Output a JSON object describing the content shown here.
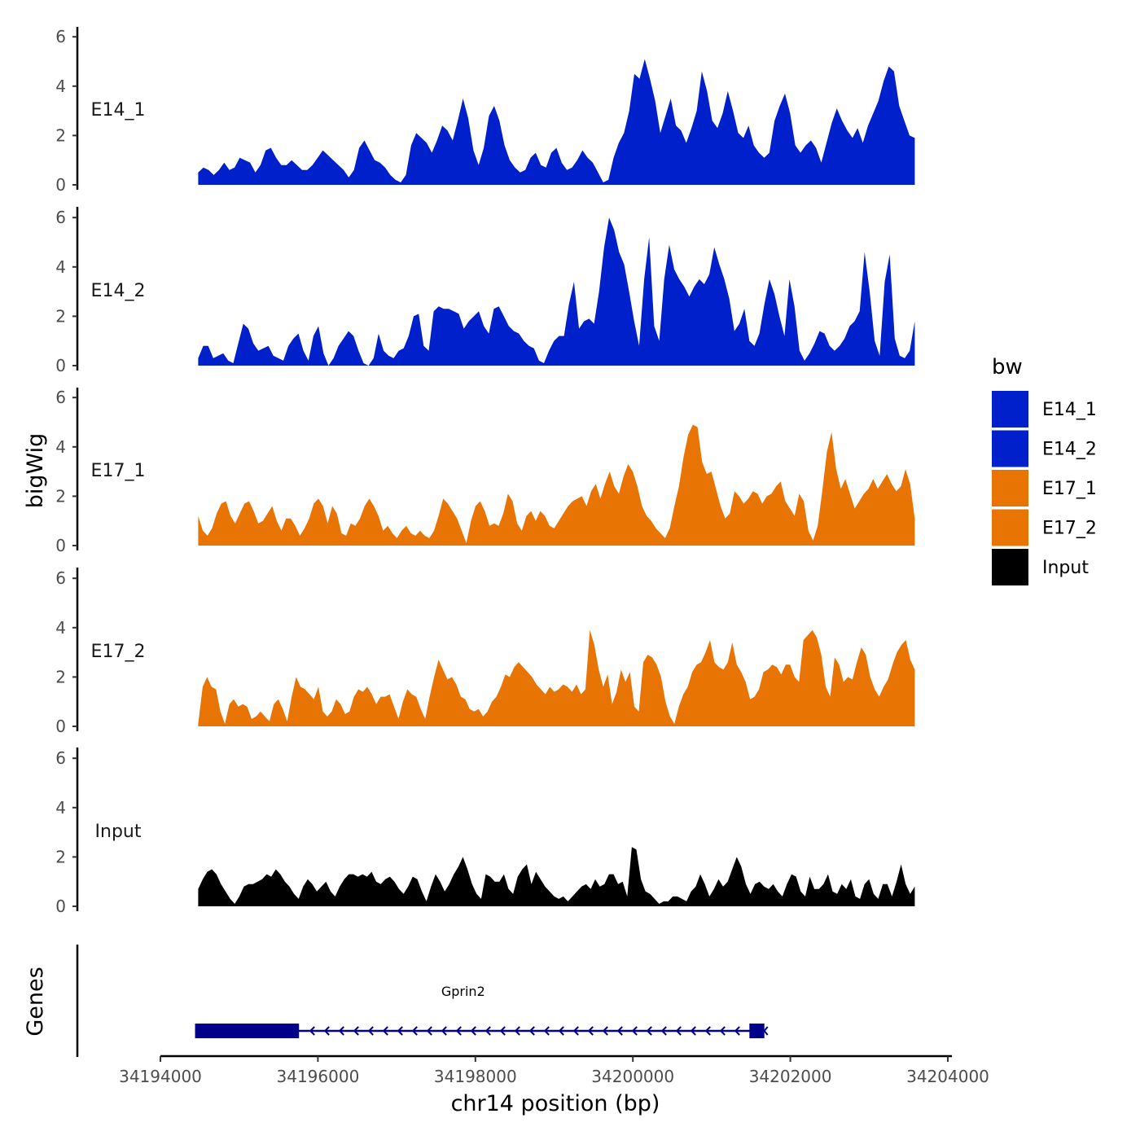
{
  "chart_data": {
    "type": "area",
    "ylabel": "bigWig",
    "xlabel": "chr14 position (bp)",
    "gene_track_label": "Genes",
    "ylim": [
      0,
      6.3
    ],
    "yticks": [
      0,
      2,
      4,
      6
    ],
    "xlim": [
      34194000,
      34204000
    ],
    "xticks": [
      34194000,
      34196000,
      34198000,
      34200000,
      34202000,
      34204000
    ],
    "x_range": [
      34194480,
      34203580
    ],
    "legend": {
      "title": "bw",
      "position": "right",
      "entries": [
        {
          "name": "E14_1",
          "color": "#0020cc"
        },
        {
          "name": "E14_2",
          "color": "#0020cc"
        },
        {
          "name": "E17_1",
          "color": "#e87404"
        },
        {
          "name": "E17_2",
          "color": "#e87404"
        },
        {
          "name": "Input",
          "color": "#000000"
        }
      ]
    },
    "series": [
      {
        "name": "E14_1",
        "color": "#0020cc",
        "values": [
          0.5,
          0.7,
          0.6,
          0.4,
          0.6,
          0.9,
          0.6,
          0.7,
          1.1,
          1.0,
          0.9,
          0.5,
          0.8,
          1.4,
          1.5,
          1.1,
          0.8,
          0.8,
          1.0,
          0.8,
          0.6,
          0.6,
          0.8,
          1.1,
          1.4,
          1.2,
          1.0,
          0.8,
          0.6,
          0.3,
          0.6,
          1.5,
          1.8,
          1.4,
          1.0,
          0.9,
          0.7,
          0.4,
          0.2,
          0.1,
          0.4,
          1.6,
          2.1,
          1.9,
          1.7,
          1.3,
          1.8,
          2.4,
          2.2,
          1.8,
          2.6,
          3.5,
          2.7,
          1.4,
          0.8,
          1.5,
          2.8,
          3.2,
          2.6,
          1.6,
          1.0,
          0.7,
          0.5,
          0.6,
          1.1,
          1.3,
          0.8,
          0.7,
          1.3,
          1.5,
          0.9,
          0.6,
          0.7,
          1.0,
          1.4,
          1.1,
          0.9,
          0.5,
          0.1,
          0.2,
          1.1,
          1.7,
          2.1,
          3.0,
          4.5,
          4.3,
          5.1,
          4.3,
          3.4,
          2.1,
          2.8,
          3.5,
          2.4,
          2.2,
          1.7,
          2.3,
          3.0,
          4.6,
          3.8,
          2.6,
          2.3,
          2.9,
          3.8,
          3.0,
          2.1,
          1.9,
          2.4,
          1.6,
          1.3,
          1.1,
          1.3,
          2.6,
          3.2,
          3.7,
          2.9,
          1.6,
          1.3,
          1.6,
          1.8,
          1.5,
          0.9,
          1.7,
          2.5,
          3.1,
          2.6,
          2.2,
          1.9,
          2.3,
          1.7,
          2.4,
          2.9,
          3.4,
          4.2,
          4.8,
          4.6,
          3.2,
          2.6,
          2.0,
          1.9
        ],
        "label": "E14_1"
      },
      {
        "name": "E14_2",
        "color": "#0020cc",
        "values": [
          0.3,
          0.8,
          0.8,
          0.3,
          0.4,
          0.5,
          0.2,
          0.1,
          0.9,
          1.7,
          1.5,
          0.9,
          0.6,
          0.7,
          0.8,
          0.4,
          0.3,
          0.2,
          0.8,
          1.1,
          1.3,
          0.6,
          0.2,
          1.2,
          1.6,
          0.5,
          0.0,
          0.3,
          0.8,
          1.1,
          1.4,
          1.2,
          0.6,
          0.1,
          0.0,
          0.3,
          1.3,
          0.6,
          0.4,
          0.3,
          0.6,
          0.7,
          1.2,
          2.0,
          2.1,
          0.8,
          0.6,
          2.2,
          2.4,
          2.3,
          2.3,
          2.2,
          2.1,
          1.5,
          1.8,
          2.0,
          2.2,
          1.6,
          1.3,
          2.3,
          2.4,
          2.0,
          1.6,
          1.4,
          1.3,
          1.0,
          0.8,
          0.7,
          0.2,
          0.1,
          0.6,
          1.0,
          1.2,
          1.2,
          2.5,
          3.4,
          1.5,
          1.8,
          1.9,
          1.7,
          3.0,
          4.8,
          6.0,
          5.5,
          4.6,
          4.1,
          3.0,
          1.8,
          0.8,
          3.5,
          5.2,
          1.6,
          1.0,
          3.5,
          4.9,
          3.9,
          3.5,
          3.2,
          2.8,
          3.2,
          3.5,
          3.3,
          3.7,
          4.8,
          4.1,
          3.5,
          2.7,
          1.4,
          1.7,
          2.3,
          1.0,
          0.8,
          1.3,
          2.5,
          3.5,
          2.9,
          2.0,
          1.2,
          3.5,
          2.4,
          0.6,
          0.2,
          0.5,
          0.9,
          1.4,
          1.3,
          0.8,
          0.6,
          0.8,
          1.1,
          1.6,
          1.8,
          2.2,
          4.6,
          3.0,
          1.0,
          0.4,
          3.4,
          4.5,
          1.1,
          0.4,
          0.3,
          0.6,
          1.8
        ],
        "label": "E14_2"
      },
      {
        "name": "E17_1",
        "color": "#e87404",
        "values": [
          1.2,
          0.6,
          0.4,
          0.7,
          1.3,
          1.7,
          1.8,
          1.2,
          0.9,
          1.3,
          1.7,
          1.8,
          1.4,
          0.9,
          1.0,
          1.3,
          1.6,
          1.0,
          0.6,
          1.1,
          1.1,
          0.8,
          0.4,
          0.7,
          1.1,
          1.7,
          1.9,
          1.6,
          0.9,
          1.6,
          1.3,
          0.5,
          0.4,
          0.9,
          0.8,
          1.1,
          1.6,
          1.9,
          1.6,
          1.2,
          0.6,
          0.8,
          0.5,
          0.3,
          0.6,
          0.8,
          0.5,
          0.4,
          0.6,
          0.4,
          0.3,
          0.6,
          1.2,
          1.9,
          1.7,
          1.4,
          1.1,
          0.6,
          0.1,
          1.0,
          1.6,
          1.8,
          1.4,
          0.8,
          0.9,
          0.8,
          1.3,
          2.1,
          1.8,
          0.9,
          0.6,
          1.2,
          1.4,
          1.0,
          1.4,
          1.2,
          0.8,
          0.7,
          1.0,
          1.3,
          1.6,
          1.8,
          1.9,
          2.0,
          1.6,
          2.2,
          2.5,
          1.9,
          2.5,
          3.0,
          2.4,
          2.1,
          2.8,
          3.3,
          3.0,
          2.4,
          1.6,
          1.2,
          1.0,
          0.7,
          0.5,
          0.3,
          0.7,
          1.6,
          2.4,
          3.6,
          4.5,
          4.9,
          4.8,
          3.4,
          2.9,
          3.0,
          2.3,
          1.6,
          1.1,
          1.3,
          2.2,
          2.0,
          1.7,
          1.9,
          2.2,
          2.1,
          1.7,
          2.0,
          2.1,
          2.4,
          2.6,
          1.8,
          1.5,
          1.2,
          2.1,
          1.8,
          0.6,
          0.2,
          0.8,
          2.2,
          3.8,
          4.6,
          3.1,
          2.3,
          2.7,
          2.1,
          1.5,
          1.8,
          2.1,
          2.3,
          2.7,
          2.3,
          2.6,
          2.9,
          2.5,
          2.2,
          2.4,
          3.1,
          2.5,
          1.1
        ],
        "label": "E17_1"
      },
      {
        "name": "E17_2",
        "color": "#e87404",
        "values": [
          0.1,
          1.6,
          2.0,
          1.6,
          1.5,
          0.6,
          0.1,
          0.9,
          1.1,
          0.8,
          0.9,
          0.8,
          0.3,
          0.4,
          0.6,
          0.4,
          0.2,
          0.9,
          1.1,
          0.7,
          0.2,
          1.2,
          2.0,
          1.6,
          1.5,
          1.3,
          1.1,
          1.6,
          0.6,
          0.4,
          0.6,
          1.1,
          0.9,
          0.5,
          0.6,
          1.2,
          1.5,
          1.4,
          1.6,
          1.3,
          0.9,
          1.2,
          1.2,
          1.3,
          0.8,
          0.3,
          1.0,
          1.5,
          1.3,
          1.2,
          0.7,
          0.3,
          1.2,
          2.0,
          2.7,
          2.3,
          1.9,
          2.0,
          1.7,
          1.2,
          1.1,
          0.7,
          0.6,
          0.7,
          0.4,
          0.6,
          1.0,
          1.2,
          1.6,
          2.1,
          2.0,
          2.4,
          2.6,
          2.4,
          2.2,
          2.0,
          1.7,
          1.5,
          1.3,
          1.6,
          1.4,
          1.5,
          1.7,
          1.6,
          1.4,
          1.7,
          1.3,
          1.5,
          3.9,
          3.3,
          2.3,
          1.6,
          2.1,
          0.9,
          1.4,
          2.3,
          1.8,
          2.2,
          0.8,
          0.6,
          2.6,
          2.9,
          2.8,
          2.5,
          2.0,
          1.0,
          0.4,
          0.1,
          0.8,
          1.3,
          1.6,
          2.2,
          2.5,
          2.6,
          3.0,
          3.5,
          2.6,
          2.4,
          2.3,
          2.6,
          3.4,
          2.5,
          2.2,
          1.8,
          1.1,
          1.2,
          1.5,
          2.2,
          2.3,
          2.5,
          2.4,
          2.1,
          2.5,
          2.5,
          2.0,
          1.8,
          3.5,
          3.7,
          3.9,
          3.6,
          2.9,
          1.6,
          1.2,
          2.8,
          2.5,
          1.8,
          2.0,
          1.9,
          2.6,
          3.2,
          2.9,
          2.0,
          1.5,
          1.2,
          1.6,
          1.9,
          2.5,
          3.0,
          3.3,
          3.5,
          2.7,
          2.3
        ],
        "label": "E17_2"
      },
      {
        "name": "Input",
        "color": "#000000",
        "values": [
          0.7,
          1.1,
          1.4,
          1.5,
          1.3,
          0.9,
          0.6,
          0.3,
          0.1,
          0.4,
          0.8,
          0.9,
          0.9,
          1.0,
          1.1,
          1.3,
          1.2,
          1.5,
          1.3,
          1.0,
          0.8,
          0.5,
          0.3,
          0.8,
          1.1,
          0.9,
          0.6,
          0.8,
          1.0,
          0.6,
          0.4,
          0.8,
          1.1,
          1.3,
          1.3,
          1.2,
          1.3,
          1.2,
          1.4,
          1.0,
          0.9,
          1.1,
          1.2,
          1.0,
          0.7,
          0.5,
          0.8,
          1.2,
          1.1,
          0.6,
          0.2,
          0.8,
          1.3,
          1.0,
          0.6,
          0.9,
          1.3,
          1.6,
          2.0,
          1.5,
          0.9,
          0.5,
          0.3,
          1.3,
          1.2,
          1.0,
          1.0,
          1.3,
          0.7,
          0.5,
          1.2,
          1.5,
          1.7,
          0.9,
          1.4,
          1.1,
          0.8,
          0.6,
          0.4,
          0.3,
          0.4,
          0.2,
          0.4,
          0.6,
          0.8,
          0.9,
          0.7,
          1.1,
          0.8,
          0.9,
          1.3,
          1.3,
          0.9,
          1.0,
          0.4,
          2.4,
          2.3,
          1.1,
          0.6,
          0.5,
          0.3,
          0.1,
          0.2,
          0.2,
          0.4,
          0.4,
          0.3,
          0.2,
          0.6,
          0.8,
          1.3,
          0.9,
          0.4,
          0.7,
          1.1,
          0.8,
          1.0,
          1.5,
          2.0,
          1.6,
          0.9,
          0.5,
          0.9,
          1.0,
          0.8,
          0.7,
          0.9,
          0.6,
          0.4,
          0.9,
          1.3,
          1.2,
          0.6,
          0.4,
          1.2,
          0.7,
          0.7,
          0.9,
          1.3,
          0.6,
          0.5,
          0.9,
          0.7,
          1.1,
          0.4,
          0.3,
          0.9,
          1.1,
          0.5,
          0.3,
          0.9,
          0.9,
          0.4,
          1.0,
          1.7,
          0.9,
          0.5,
          0.8
        ],
        "label": "Input"
      }
    ],
    "gene": {
      "name": "Gprin2",
      "start": 34194440,
      "end": 34201670,
      "strand": "-",
      "exons": [
        [
          34194440,
          34195760
        ],
        [
          34201480,
          34201670
        ]
      ],
      "color": "#00008b"
    }
  }
}
